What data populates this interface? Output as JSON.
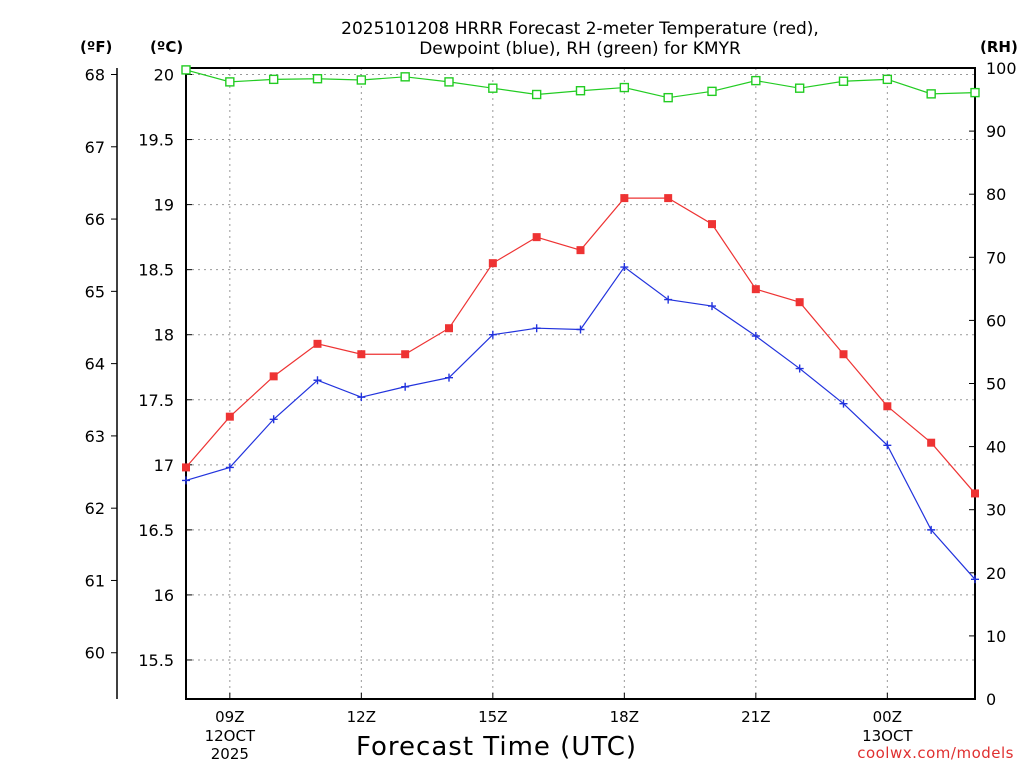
{
  "title_line1": "2025101208 HRRR Forecast 2-meter Temperature (red),",
  "title_line2": "Dewpoint (blue), RH (green) for KMYR",
  "axis_units": {
    "fahrenheit": "(ºF)",
    "celsius": "(ºC)",
    "rh": "(RH)"
  },
  "credit": "coolwx.com/models",
  "colors": {
    "temperature": "#ee3333",
    "dewpoint": "#2233dd",
    "rh": "#22cc22",
    "grid": "#999999"
  },
  "chart_data": {
    "type": "line",
    "title": "2025101208 HRRR Forecast 2-meter Temperature (red), Dewpoint (blue), RH (green) for KMYR",
    "xlabel": "Forecast Time (UTC)",
    "x": [
      8,
      9,
      10,
      11,
      12,
      13,
      14,
      15,
      16,
      17,
      18,
      19,
      20,
      21,
      22,
      23,
      24,
      25,
      26
    ],
    "xlim": [
      8,
      26
    ],
    "xticks": [
      {
        "x": 9,
        "label": "09Z",
        "sub": [
          "12OCT",
          "2025"
        ]
      },
      {
        "x": 12,
        "label": "12Z",
        "sub": []
      },
      {
        "x": 15,
        "label": "15Z",
        "sub": []
      },
      {
        "x": 18,
        "label": "18Z",
        "sub": []
      },
      {
        "x": 21,
        "label": "21Z",
        "sub": []
      },
      {
        "x": 24,
        "label": "00Z",
        "sub": [
          "13OCT"
        ]
      }
    ],
    "y_celsius": {
      "label": "(ºC)",
      "ylim": [
        15.2,
        20.05
      ],
      "ticks": [
        "15.5",
        "16",
        "16.5",
        "17",
        "17.5",
        "18",
        "18.5",
        "19",
        "19.5",
        "20"
      ]
    },
    "y_fahrenheit": {
      "label": "(ºF)",
      "ticks": [
        "60",
        "61",
        "62",
        "63",
        "64",
        "65",
        "66",
        "67",
        "68"
      ]
    },
    "y_rh": {
      "label": "(RH)",
      "ylim": [
        0,
        100
      ],
      "ticks": [
        "0",
        "10",
        "20",
        "30",
        "40",
        "50",
        "60",
        "70",
        "80",
        "90",
        "100"
      ]
    },
    "series": [
      {
        "name": "Temperature",
        "axis": "celsius",
        "color": "#ee3333",
        "marker": "filled-square",
        "values": [
          16.98,
          17.37,
          17.68,
          17.93,
          17.85,
          17.85,
          18.05,
          18.55,
          18.75,
          18.65,
          19.05,
          19.05,
          18.85,
          18.35,
          18.25,
          17.85,
          17.45,
          17.17,
          16.78
        ]
      },
      {
        "name": "Dewpoint",
        "axis": "celsius",
        "color": "#2233dd",
        "marker": "plus",
        "values": [
          16.88,
          16.98,
          17.35,
          17.65,
          17.52,
          17.6,
          17.67,
          18.0,
          18.05,
          18.04,
          18.52,
          18.27,
          18.22,
          17.99,
          17.74,
          17.47,
          17.15,
          16.5,
          16.12
        ]
      },
      {
        "name": "RH",
        "axis": "rh",
        "color": "#22cc22",
        "marker": "open-square",
        "values": [
          99.7,
          97.8,
          98.2,
          98.3,
          98.1,
          98.6,
          97.8,
          96.8,
          95.8,
          96.4,
          96.9,
          95.3,
          96.3,
          98.0,
          96.8,
          97.9,
          98.2,
          95.9,
          96.1
        ]
      }
    ]
  }
}
